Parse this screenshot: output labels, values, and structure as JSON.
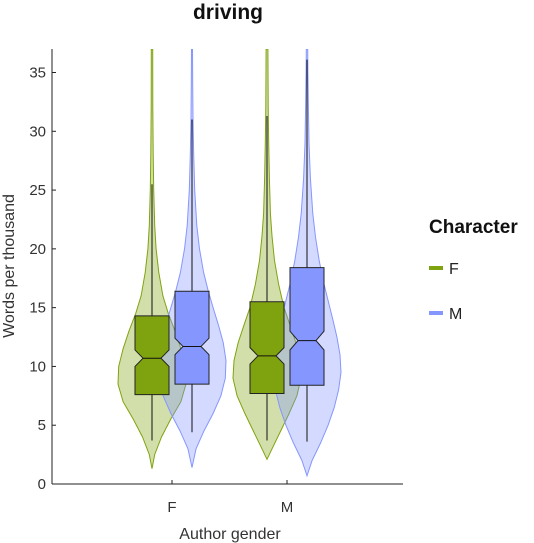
{
  "chart_data": {
    "type": "violin",
    "title": "driving",
    "xlabel": "Author gender",
    "ylabel": "Words per thousand",
    "categories": [
      "F",
      "M"
    ],
    "ylim": [
      0,
      37
    ],
    "yticks": [
      0,
      5,
      10,
      15,
      20,
      25,
      30,
      35
    ],
    "grid": false,
    "legend": {
      "title": "Character",
      "placement": "right",
      "entries": [
        {
          "name": "F",
          "color": "#7fa30f"
        },
        {
          "name": "M",
          "color": "#8596ff"
        }
      ]
    },
    "series": [
      {
        "name": "F",
        "color": "#7fa30f",
        "groups": [
          {
            "category": "F",
            "box": {
              "q1": 7.6,
              "median": 10.7,
              "q3": 14.3,
              "whisker_low": 3.7,
              "whisker_high": 25.5,
              "notch_low": 10.0,
              "notch_high": 11.4
            },
            "violin": [
              [
                1.3,
                0.0
              ],
              [
                2.5,
                0.08
              ],
              [
                4,
                0.28
              ],
              [
                5.5,
                0.55
              ],
              [
                7,
                0.85
              ],
              [
                8.5,
                1.0
              ],
              [
                10,
                0.98
              ],
              [
                11.5,
                0.85
              ],
              [
                13,
                0.68
              ],
              [
                14.5,
                0.48
              ],
              [
                16,
                0.32
              ],
              [
                18,
                0.2
              ],
              [
                20,
                0.12
              ],
              [
                22,
                0.08
              ],
              [
                25,
                0.05
              ],
              [
                28,
                0.035
              ],
              [
                32,
                0.025
              ],
              [
                37,
                0.02
              ]
            ]
          },
          {
            "category": "M",
            "box": {
              "q1": 7.7,
              "median": 10.9,
              "q3": 15.5,
              "whisker_low": 3.7,
              "whisker_high": 31.3,
              "notch_low": 10.2,
              "notch_high": 11.6
            },
            "violin": [
              [
                2.1,
                0.0
              ],
              [
                3,
                0.15
              ],
              [
                4.5,
                0.4
              ],
              [
                6,
                0.65
              ],
              [
                7.5,
                0.88
              ],
              [
                9,
                1.0
              ],
              [
                10.5,
                0.97
              ],
              [
                12,
                0.85
              ],
              [
                13.5,
                0.68
              ],
              [
                15,
                0.5
              ],
              [
                17,
                0.34
              ],
              [
                19,
                0.22
              ],
              [
                21,
                0.15
              ],
              [
                23,
                0.1
              ],
              [
                26,
                0.07
              ],
              [
                29,
                0.05
              ],
              [
                32,
                0.035
              ],
              [
                37,
                0.025
              ]
            ]
          }
        ]
      },
      {
        "name": "M",
        "color": "#8596ff",
        "groups": [
          {
            "category": "F",
            "box": {
              "q1": 8.5,
              "median": 11.7,
              "q3": 16.4,
              "whisker_low": 4.4,
              "whisker_high": 31.0,
              "notch_low": 11.0,
              "notch_high": 12.4
            },
            "violin": [
              [
                1.4,
                0.0
              ],
              [
                3,
                0.12
              ],
              [
                4.5,
                0.35
              ],
              [
                6,
                0.62
              ],
              [
                7.5,
                0.85
              ],
              [
                9,
                0.98
              ],
              [
                10.5,
                1.0
              ],
              [
                12,
                0.92
              ],
              [
                13.5,
                0.78
              ],
              [
                15,
                0.62
              ],
              [
                16.5,
                0.47
              ],
              [
                18,
                0.34
              ],
              [
                20,
                0.22
              ],
              [
                22,
                0.14
              ],
              [
                25,
                0.08
              ],
              [
                28,
                0.05
              ],
              [
                31,
                0.03
              ],
              [
                34,
                0.02
              ],
              [
                37,
                0.015
              ]
            ]
          },
          {
            "category": "M",
            "box": {
              "q1": 8.4,
              "median": 12.2,
              "q3": 18.4,
              "whisker_low": 3.6,
              "whisker_high": 36.1,
              "notch_low": 11.4,
              "notch_high": 13.0
            },
            "violin": [
              [
                0.7,
                0.0
              ],
              [
                2,
                0.15
              ],
              [
                3.5,
                0.4
              ],
              [
                5,
                0.62
              ],
              [
                6.5,
                0.8
              ],
              [
                8,
                0.93
              ],
              [
                9.5,
                1.0
              ],
              [
                11,
                0.97
              ],
              [
                12.5,
                0.88
              ],
              [
                14,
                0.76
              ],
              [
                15.5,
                0.63
              ],
              [
                17,
                0.5
              ],
              [
                19,
                0.36
              ],
              [
                21,
                0.25
              ],
              [
                23,
                0.17
              ],
              [
                26,
                0.1
              ],
              [
                29,
                0.06
              ],
              [
                32,
                0.04
              ],
              [
                35,
                0.025
              ],
              [
                37,
                0.02
              ]
            ]
          }
        ]
      }
    ]
  }
}
